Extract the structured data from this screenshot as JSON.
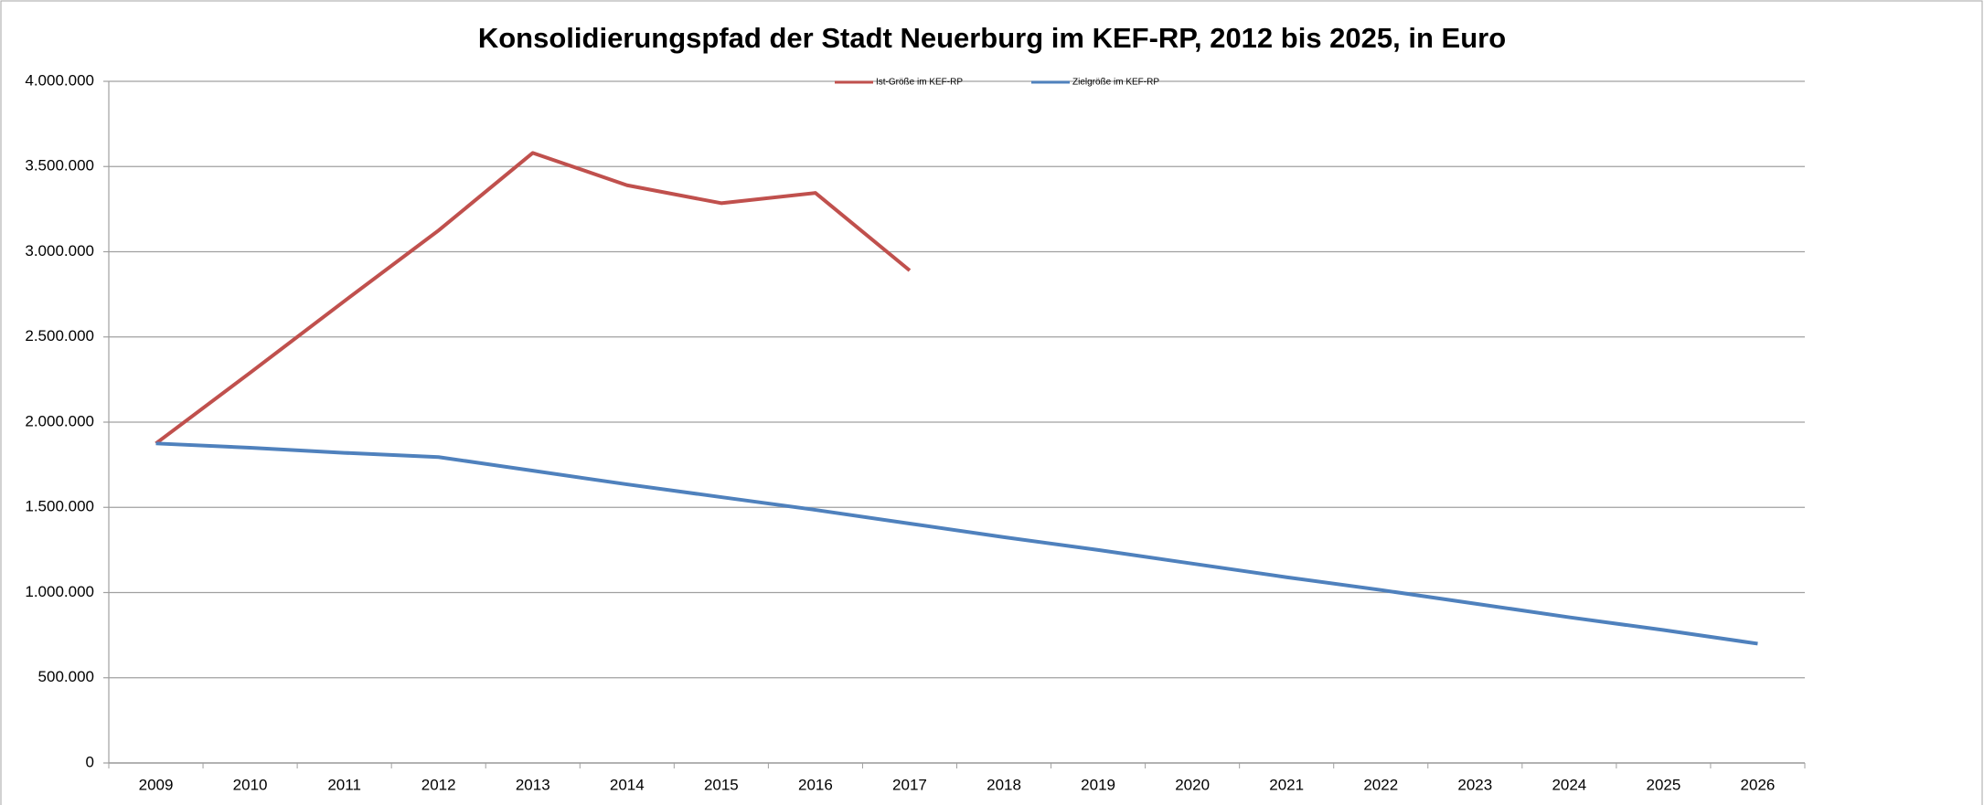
{
  "chart_data": {
    "type": "line",
    "title": "Konsolidierungspfad der Stadt Neuerburg im KEF-RP, 2012 bis 2025, in Euro",
    "categories": [
      "2009",
      "2010",
      "2011",
      "2012",
      "2013",
      "2014",
      "2015",
      "2016",
      "2017",
      "2018",
      "2019",
      "2020",
      "2021",
      "2022",
      "2023",
      "2024",
      "2025",
      "2026"
    ],
    "series": [
      {
        "name": "Ist-Größe im KEF-RP",
        "color": "#c0504d",
        "values": [
          1875000,
          2290000,
          2710000,
          3125000,
          3580000,
          3390000,
          3285000,
          3345000,
          2890000,
          null,
          null,
          null,
          null,
          null,
          null,
          null,
          null,
          null
        ]
      },
      {
        "name": "Zielgröße im KEF-RP",
        "color": "#4f81bd",
        "values": [
          1875000,
          1850000,
          1820000,
          1795000,
          1715000,
          1635000,
          1560000,
          1485000,
          1405000,
          1325000,
          1250000,
          1170000,
          1090000,
          1015000,
          935000,
          855000,
          780000,
          700000
        ]
      }
    ],
    "ylim": [
      0,
      4000000
    ],
    "yticks": [
      0,
      {
        "value": 500000,
        "label": "500.000"
      },
      {
        "value": 1000000,
        "label": "1.000.000"
      },
      {
        "value": 1500000,
        "label": "1.500.000"
      },
      {
        "value": 2000000,
        "label": "2.000.000"
      },
      {
        "value": 2500000,
        "label": "2.500.000"
      },
      {
        "value": 3000000,
        "label": "3.000.000"
      },
      {
        "value": 3500000,
        "label": "3.500.000"
      },
      {
        "value": 4000000,
        "label": "4.000.000"
      }
    ],
    "grid": true,
    "legend": "top"
  }
}
